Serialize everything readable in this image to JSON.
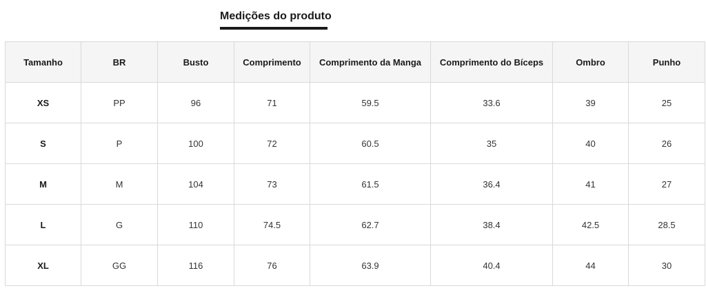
{
  "page": {
    "title": "Medições do produto"
  },
  "table": {
    "headers": [
      "Tamanho",
      "BR",
      "Busto",
      "Comprimento",
      "Comprimento da Manga",
      "Comprimento do Bíceps",
      "Ombro",
      "Punho"
    ],
    "rows": [
      [
        "XS",
        "PP",
        "96",
        "71",
        "59.5",
        "33.6",
        "39",
        "25"
      ],
      [
        "S",
        "P",
        "100",
        "72",
        "60.5",
        "35",
        "40",
        "26"
      ],
      [
        "M",
        "M",
        "104",
        "73",
        "61.5",
        "36.4",
        "41",
        "27"
      ],
      [
        "L",
        "G",
        "110",
        "74.5",
        "62.7",
        "38.4",
        "42.5",
        "28.5"
      ],
      [
        "XL",
        "GG",
        "116",
        "76",
        "63.9",
        "40.4",
        "44",
        "30"
      ]
    ]
  }
}
